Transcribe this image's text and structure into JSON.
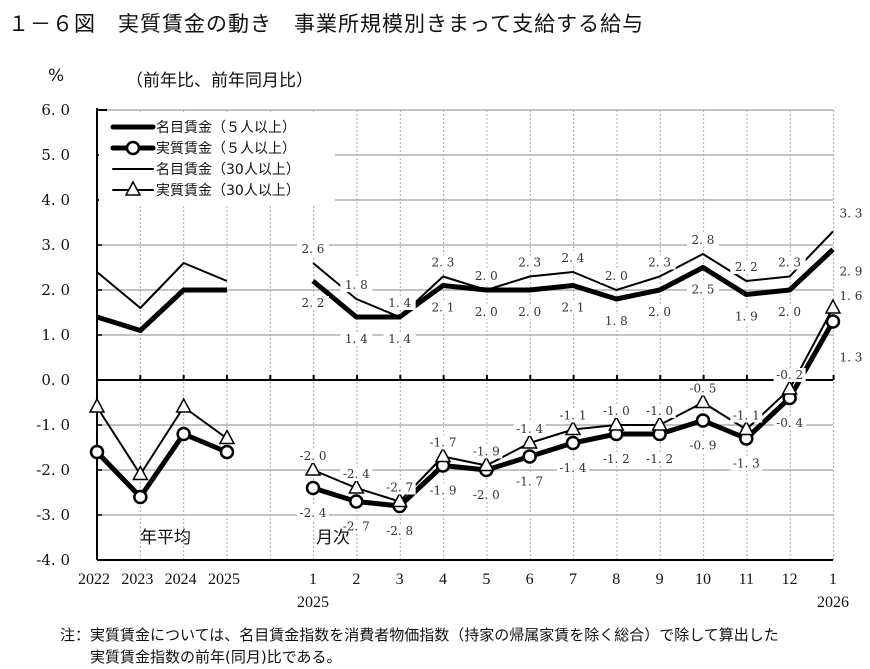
{
  "header": {
    "title": "１－６図　実質賃金の動き　事業所規模別きまって支給する給与",
    "unit": "%",
    "unit_note": "（前年比、前年同月比）"
  },
  "footnote": {
    "line1": "注：実質賃金については、名目賃金指数を消費者物価指数（持家の帰属家賃を除く総合）で除して算出した",
    "line2": "実質賃金指数の前年(同月)比である。"
  },
  "chart_data": {
    "type": "line",
    "title": "実質賃金の動き　事業所規模別きまって支給する給与",
    "ylabel": "%（前年比、前年同月比）",
    "xlabel": "",
    "ylim": [
      -4.0,
      6.0
    ],
    "yticks": [
      "6.0",
      "5.0",
      "4.0",
      "3.0",
      "2.0",
      "1.0",
      "0.0",
      "-1.0",
      "-2.0",
      "-3.0",
      "-4.0"
    ],
    "grid": true,
    "legend_position": "upper-left",
    "section_labels": {
      "annual": "年平均",
      "monthly": "月次"
    },
    "annual": {
      "categories": [
        "2022",
        "2023",
        "2024",
        "2025"
      ],
      "series": [
        {
          "name": "名目賃金（５人以上）",
          "values": [
            1.4,
            1.1,
            2.0,
            2.0
          ]
        },
        {
          "name": "実質賃金（５人以上）",
          "values": [
            -1.6,
            -2.6,
            -1.2,
            -1.6
          ]
        },
        {
          "name": "名目賃金（30人以上）",
          "values": [
            2.4,
            1.6,
            2.6,
            2.2
          ]
        },
        {
          "name": "実質賃金（30人以上）",
          "values": [
            -0.6,
            -2.1,
            -0.6,
            -1.3
          ]
        }
      ]
    },
    "monthly": {
      "categories": [
        "1",
        "2",
        "3",
        "4",
        "5",
        "6",
        "7",
        "8",
        "9",
        "10",
        "11",
        "12",
        "1"
      ],
      "year_labels": {
        "start": "2025",
        "end": "2026"
      },
      "series": [
        {
          "name": "名目賃金（５人以上）",
          "values": [
            2.2,
            1.4,
            1.4,
            2.1,
            2.0,
            2.0,
            2.1,
            1.8,
            2.0,
            2.5,
            1.9,
            2.0,
            2.9
          ]
        },
        {
          "name": "実質賃金（５人以上）",
          "values": [
            -2.4,
            -2.7,
            -2.8,
            -1.9,
            -2.0,
            -1.7,
            -1.4,
            -1.2,
            -1.2,
            -0.9,
            -1.3,
            -0.4,
            1.3
          ]
        },
        {
          "name": "名目賃金（30人以上）",
          "values": [
            2.6,
            1.8,
            1.4,
            2.3,
            2.0,
            2.3,
            2.4,
            2.0,
            2.3,
            2.8,
            2.2,
            2.3,
            3.3
          ]
        },
        {
          "name": "実質賃金（30人以上）",
          "values": [
            -2.0,
            -2.4,
            -2.7,
            -1.7,
            -1.9,
            -1.4,
            -1.1,
            -1.0,
            -1.0,
            -0.5,
            -1.1,
            -0.2,
            1.6
          ]
        }
      ]
    },
    "legend": [
      {
        "label": "名目賃金（５人以上）",
        "style": "thick-line"
      },
      {
        "label": "実質賃金（５人以上）",
        "style": "thick-line-circle"
      },
      {
        "label": "名目賃金（30人以上）",
        "style": "thin-line"
      },
      {
        "label": "実質賃金（30人以上）",
        "style": "thin-line-triangle"
      }
    ],
    "colors": {
      "line": "#000000",
      "grid": "#b0b0b0",
      "label": "#333333"
    }
  }
}
